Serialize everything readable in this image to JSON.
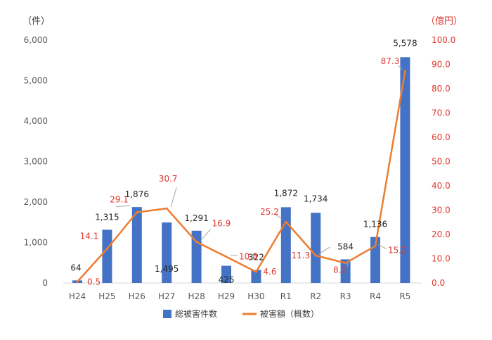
{
  "chart_data": {
    "type": "bar+line",
    "categories": [
      "H24",
      "H25",
      "H26",
      "H27",
      "H28",
      "H29",
      "H30",
      "R1",
      "R2",
      "R3",
      "R4",
      "R5"
    ],
    "series": [
      {
        "name": "総被害件数",
        "type": "bar",
        "axis": "left",
        "color": "#4472c4",
        "values": [
          64,
          1315,
          1876,
          1495,
          1291,
          425,
          322,
          1872,
          1734,
          584,
          1136,
          5578
        ],
        "labels": [
          "64",
          "1,315",
          "1,876",
          "1,495",
          "1,291",
          "425",
          "322",
          "1,872",
          "1,734",
          "584",
          "1,136",
          "5,578"
        ]
      },
      {
        "name": "被害額（概数）",
        "type": "line",
        "axis": "right",
        "color": "#ed7d31",
        "values": [
          0.5,
          14.1,
          29.1,
          30.7,
          16.9,
          10.8,
          4.6,
          25.2,
          11.3,
          8.2,
          15.2,
          87.3
        ],
        "labels": [
          "0.5",
          "14.1",
          "29.1",
          "30.7",
          "16.9",
          "10.8",
          "4.6",
          "25.2",
          "11.3",
          "8.2",
          "15.2",
          "87.3"
        ]
      }
    ],
    "y_left": {
      "unit": "（件）",
      "range": [
        0,
        6000
      ],
      "ticks": [
        "0",
        "1,000",
        "2,000",
        "3,000",
        "4,000",
        "5,000",
        "6,000"
      ],
      "tick_values": [
        0,
        1000,
        2000,
        3000,
        4000,
        5000,
        6000
      ]
    },
    "y_right": {
      "unit": "（億円）",
      "range": [
        0,
        100
      ],
      "ticks": [
        "0.0",
        "10.0",
        "20.0",
        "30.0",
        "40.0",
        "50.0",
        "60.0",
        "70.0",
        "80.0",
        "90.0",
        "100.0"
      ],
      "tick_values": [
        0,
        10,
        20,
        30,
        40,
        50,
        60,
        70,
        80,
        90,
        100
      ],
      "color": "#e03a2f"
    },
    "grid": false,
    "legend_position": "bottom"
  }
}
